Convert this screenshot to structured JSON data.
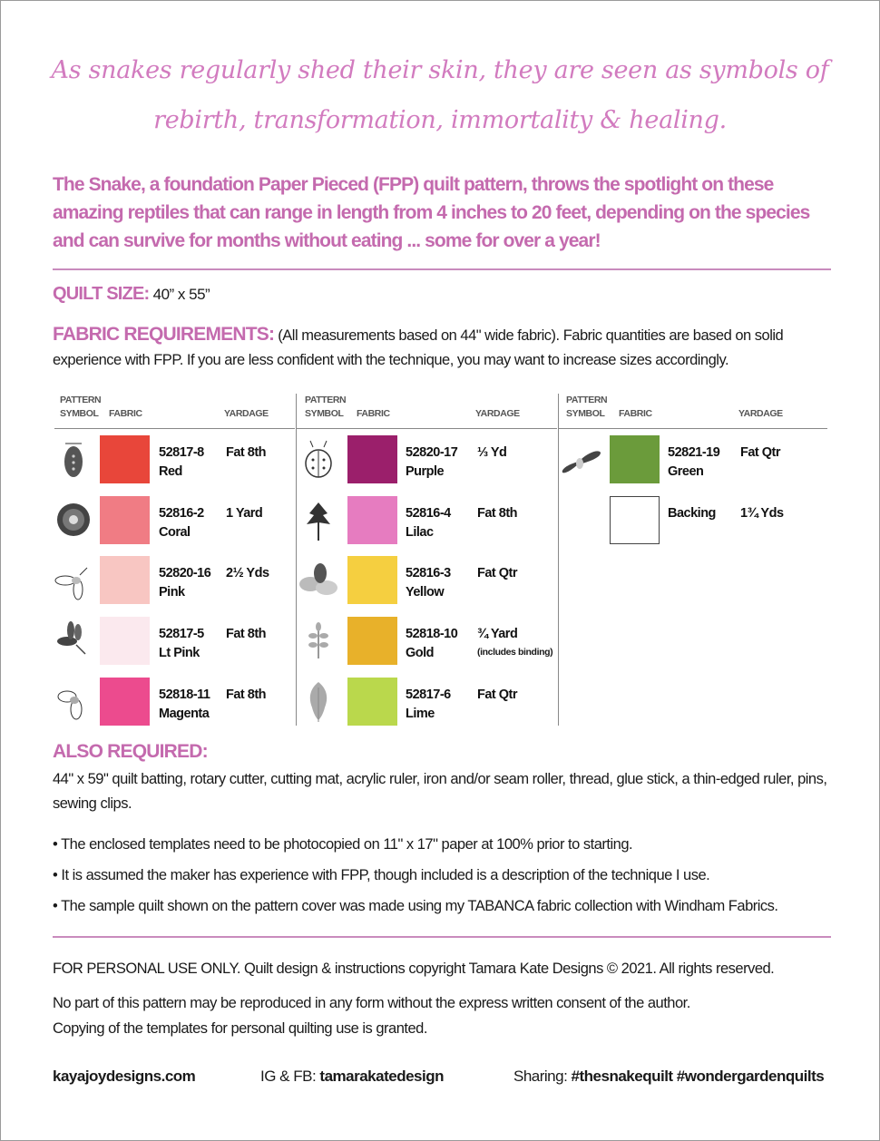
{
  "tagline": {
    "line1": "As snakes regularly shed their skin, they are seen as symbols of",
    "line2": "rebirth, transformation, immortality & healing."
  },
  "intro": "The Snake, a foundation Paper Pieced (FPP) quilt pattern, throws the spotlight on these amazing reptiles that can range in length from 4 inches to 20 feet, depending on the species and can survive for months without eating ... some for over a year!",
  "quilt_size": {
    "label": "QUILT SIZE:",
    "value": "40” x 55”"
  },
  "fabric_requirements": {
    "label": "FABRIC REQUIREMENTS:",
    "text": "(All measurements based on 44\" wide fabric). Fabric quantities are based on solid experience with FPP. If you are less confident with the technique, you may want to increase sizes accordingly."
  },
  "table_headers": {
    "symbol_line1": "PATTERN",
    "symbol_line2": "SYMBOL",
    "fabric": "FABRIC",
    "yardage": "YARDAGE"
  },
  "fabrics": [
    {
      "code": "52817-8",
      "name": "Red",
      "yardage": "Fat 8th",
      "color": "#e8463a",
      "icon": "beetle-icon"
    },
    {
      "code": "52816-2",
      "name": "Coral",
      "yardage": "1 Yard",
      "color": "#f07c84",
      "icon": "chrysanthemum-icon"
    },
    {
      "code": "52820-16",
      "name": "Pink",
      "yardage": "2½ Yds",
      "color": "#f8c6c2",
      "icon": "firefly-outline-icon"
    },
    {
      "code": "52817-5",
      "name": "Lt Pink",
      "yardage": "Fat 8th",
      "color": "#fbe9ee",
      "icon": "dragonfly-dark-icon"
    },
    {
      "code": "52818-11",
      "name": "Magenta",
      "yardage": "Fat 8th",
      "color": "#ec4b8e",
      "icon": "bee-outline-icon"
    },
    {
      "code": "52820-17",
      "name": "Purple",
      "yardage": "⅓ Yd",
      "color": "#9b1f6b",
      "icon": "ladybug-icon"
    },
    {
      "code": "52816-4",
      "name": "Lilac",
      "yardage": "Fat 8th",
      "color": "#e67cc0",
      "icon": "parsley-leaf-icon"
    },
    {
      "code": "52816-3",
      "name": "Yellow",
      "yardage": "Fat Qtr",
      "color": "#f5cf40",
      "icon": "bee-gray-icon"
    },
    {
      "code": "52818-10",
      "name": "Gold",
      "yardage": "¾ Yard",
      "note": "(includes binding)",
      "color": "#e8b12a",
      "icon": "fern-leaf-icon"
    },
    {
      "code": "52817-6",
      "name": "Lime",
      "yardage": "Fat Qtr",
      "color": "#bad84c",
      "icon": "oak-leaf-icon"
    },
    {
      "code": "52821-19",
      "name": "Green",
      "yardage": "Fat Qtr",
      "color": "#6b9b3b",
      "icon": "moth-icon"
    },
    {
      "code": "",
      "name": "Backing",
      "yardage": "1¾ Yds",
      "color": "#ffffff",
      "icon": ""
    }
  ],
  "also_required": {
    "label": "ALSO REQUIRED:",
    "text": "44\" x 59\" quilt batting, rotary cutter, cutting mat, acrylic ruler, iron and/or seam roller, thread, glue stick, a thin-edged ruler, pins, sewing clips.",
    "bullets": [
      "• The enclosed templates need to be photocopied on 11\" x 17\" paper at 100% prior to starting.",
      "• It is assumed the maker has experience with FPP, though included is a description of the technique I use.",
      "• The sample quilt shown on the pattern cover was made using my TABANCA fabric collection with Windham Fabrics."
    ]
  },
  "legal": {
    "copyright": "FOR PERSONAL USE ONLY. Quilt design & instructions copyright Tamara Kate Designs © 2021. All rights reserved.",
    "line2": "No part of this pattern may be reproduced in any form without the express written consent of the author.",
    "line3": "Copying of the templates for personal quilting use is granted."
  },
  "footer": {
    "website": "kayajoydesigns.com",
    "social_label": "IG & FB: ",
    "social_handle": "tamarakatedesign",
    "sharing_label": "Sharing: ",
    "hashtags": "#thesnakequilt #wondergardenquilts"
  },
  "colors": {
    "accent": "#c46aae",
    "rule": "#c98bbd"
  }
}
